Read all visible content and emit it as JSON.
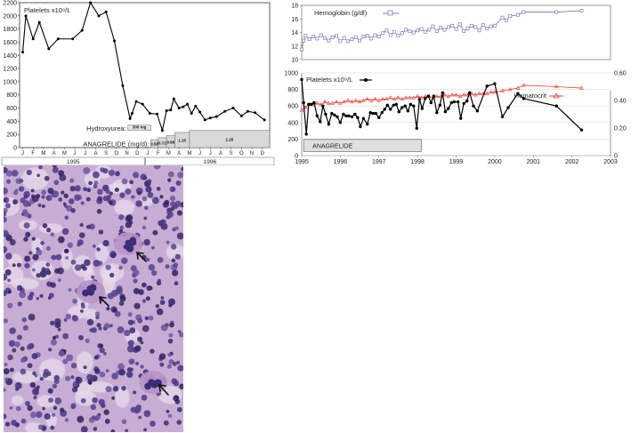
{
  "chart_data": [
    {
      "type": "line",
      "legend_label": "Platelets x10⁹/L",
      "ylim": [
        0,
        2200
      ],
      "yticks": [
        0,
        200,
        400,
        600,
        800,
        1000,
        1200,
        1400,
        1600,
        1800,
        2000,
        2200
      ],
      "month_labels": [
        "J",
        "F",
        "M",
        "A",
        "M",
        "J",
        "J",
        "A",
        "S",
        "O",
        "N",
        "D",
        "J",
        "F",
        "M",
        "A",
        "M",
        "J",
        "J",
        "A",
        "S",
        "O",
        "N",
        "D"
      ],
      "year_labels": [
        "1995",
        "1996"
      ],
      "series": [
        {
          "name": "Platelets x10⁹/L",
          "color": "#000000",
          "x": [
            0,
            0.3,
            1,
            1.6,
            2.5,
            3.4,
            4.8,
            5.7,
            6.5,
            7.3,
            8,
            8.8,
            9.6,
            10.3,
            10.5,
            10.9,
            11.5,
            12.2,
            12.9,
            13.4,
            13.8,
            14.2,
            14.5,
            15,
            15.4,
            15.8,
            16.2,
            16.6,
            17,
            17.5,
            18,
            18.6,
            19.4,
            20.2,
            21,
            21.6,
            22.3,
            23.2
          ],
          "values": [
            1450,
            2000,
            1650,
            1900,
            1500,
            1650,
            1650,
            1780,
            2200,
            2000,
            2060,
            1620,
            940,
            440,
            520,
            700,
            660,
            520,
            510,
            260,
            560,
            570,
            740,
            600,
            620,
            660,
            520,
            630,
            540,
            420,
            450,
            470,
            550,
            600,
            480,
            550,
            530,
            420
          ]
        }
      ],
      "treatments": [
        {
          "label": "Hydroxyurea:",
          "bars": [
            {
              "label": "300 mg",
              "start": 10.1,
              "end": 12.3
            }
          ]
        },
        {
          "label": "ANAGRELIDE (mg/d):",
          "bars": [
            {
              "label": "0.58",
              "start": 12.3,
              "end": 13.0
            },
            {
              "label": "0.71",
              "start": 13.0,
              "end": 13.8
            },
            {
              "label": "0.86",
              "start": 13.8,
              "end": 14.6
            },
            {
              "label": "1.15",
              "start": 14.6,
              "end": 16.0
            },
            {
              "label": "1.25",
              "start": 16.0,
              "end": 24.0
            }
          ]
        }
      ]
    },
    {
      "type": "line",
      "legend_label": "Hemoglobin (g/dl)",
      "ylim": [
        10,
        18
      ],
      "yticks": [
        10,
        12,
        14,
        16,
        18
      ],
      "xlim": [
        1995,
        2003
      ],
      "series": [
        {
          "name": "Hemoglobin (g/dl)",
          "color": "#7a7fb5",
          "x": [
            1995.0,
            1995.05,
            1995.1,
            1995.2,
            1995.3,
            1995.4,
            1995.5,
            1995.6,
            1995.7,
            1995.8,
            1995.9,
            1996.0,
            1996.1,
            1996.2,
            1996.3,
            1996.4,
            1996.5,
            1996.6,
            1996.7,
            1996.8,
            1996.9,
            1997.0,
            1997.1,
            1997.2,
            1997.3,
            1997.4,
            1997.5,
            1997.6,
            1997.7,
            1997.8,
            1997.9,
            1998.0,
            1998.1,
            1998.2,
            1998.3,
            1998.4,
            1998.5,
            1998.6,
            1998.7,
            1998.8,
            1998.9,
            1999.0,
            1999.1,
            1999.2,
            1999.3,
            1999.4,
            1999.5,
            1999.6,
            1999.7,
            1999.8,
            1999.9,
            2000.0,
            2000.2,
            2000.3,
            2000.4,
            2000.6,
            2000.75,
            2001.6,
            2002.25
          ],
          "values": [
            11.5,
            12.8,
            13.5,
            13.0,
            13.4,
            13.1,
            13.6,
            13.2,
            12.8,
            13.3,
            13.5,
            12.7,
            13.2,
            12.7,
            13.0,
            13.3,
            12.8,
            13.4,
            13.5,
            13.1,
            13.6,
            13.4,
            13.9,
            14.3,
            13.6,
            14.1,
            13.5,
            13.9,
            14.4,
            14.2,
            14.0,
            14.3,
            14.5,
            14.1,
            14.4,
            14.9,
            14.2,
            14.7,
            14.4,
            14.8,
            15.0,
            14.5,
            15.2,
            14.2,
            14.6,
            15.0,
            14.8,
            14.3,
            15.1,
            14.6,
            14.9,
            15.0,
            16.2,
            15.8,
            16.4,
            16.6,
            17.0,
            17.0,
            17.2
          ]
        }
      ]
    },
    {
      "type": "line",
      "ylim_left": [
        0,
        1000
      ],
      "yticks_left": [
        0,
        200,
        400,
        600,
        800,
        1000
      ],
      "ylim_right": [
        0,
        0.6
      ],
      "yticks_right": [
        "0",
        "0.20",
        "0.40",
        "0.60"
      ],
      "xlim": [
        1995,
        2003
      ],
      "xticks": [
        "1995",
        "1996",
        "1997",
        "1998",
        "1999",
        "2000",
        "2001",
        "2002",
        "2003"
      ],
      "legend": [
        "Platelets x10⁹/L",
        "Hematocrit"
      ],
      "series": [
        {
          "name": "Platelets x10⁹/L",
          "axis": "left",
          "color": "#000000",
          "x": [
            1995.0,
            1995.05,
            1995.12,
            1995.18,
            1995.25,
            1995.32,
            1995.4,
            1995.48,
            1995.55,
            1995.62,
            1995.7,
            1995.78,
            1995.85,
            1995.92,
            1996.0,
            1996.08,
            1996.15,
            1996.22,
            1996.3,
            1996.38,
            1996.45,
            1996.52,
            1996.6,
            1996.7,
            1996.78,
            1996.85,
            1996.92,
            1997.0,
            1997.08,
            1997.15,
            1997.22,
            1997.3,
            1997.38,
            1997.45,
            1997.52,
            1997.6,
            1997.68,
            1997.75,
            1997.82,
            1997.9,
            1997.98,
            1998.05,
            1998.12,
            1998.2,
            1998.28,
            1998.35,
            1998.42,
            1998.5,
            1998.58,
            1998.65,
            1998.72,
            1998.8,
            1998.88,
            1998.95,
            1999.05,
            1999.12,
            1999.2,
            1999.28,
            1999.35,
            1999.45,
            1999.55,
            1999.8,
            2000.0,
            2000.2,
            2000.35,
            2000.6,
            2000.75,
            2001.6,
            2002.25
          ],
          "values": [
            920,
            640,
            260,
            620,
            620,
            640,
            480,
            410,
            600,
            500,
            380,
            510,
            490,
            470,
            400,
            500,
            480,
            480,
            470,
            500,
            460,
            350,
            450,
            380,
            520,
            510,
            510,
            460,
            520,
            560,
            610,
            560,
            610,
            620,
            530,
            580,
            600,
            540,
            620,
            600,
            330,
            680,
            570,
            690,
            720,
            640,
            720,
            520,
            610,
            760,
            530,
            570,
            640,
            650,
            650,
            450,
            630,
            660,
            760,
            600,
            540,
            840,
            870,
            470,
            580,
            750,
            690,
            600,
            310
          ]
        },
        {
          "name": "Hematocrit",
          "axis": "right",
          "color": "#e0443a",
          "x": [
            1995.0,
            1995.1,
            1995.2,
            1995.3,
            1995.4,
            1995.5,
            1995.6,
            1995.7,
            1995.8,
            1995.9,
            1996.0,
            1996.1,
            1996.2,
            1996.3,
            1996.4,
            1996.5,
            1996.6,
            1996.7,
            1996.8,
            1996.9,
            1997.0,
            1997.1,
            1997.2,
            1997.3,
            1997.4,
            1997.5,
            1997.6,
            1997.7,
            1997.8,
            1997.9,
            1998.0,
            1998.1,
            1998.2,
            1998.3,
            1998.4,
            1998.5,
            1998.6,
            1998.7,
            1998.8,
            1998.9,
            1999.0,
            1999.1,
            1999.2,
            1999.3,
            1999.4,
            1999.5,
            1999.6,
            1999.7,
            1999.8,
            1999.9,
            2000.0,
            2000.2,
            2000.4,
            2000.6,
            2000.75,
            2001.6,
            2002.25
          ],
          "values": [
            0.33,
            0.35,
            0.37,
            0.37,
            0.38,
            0.37,
            0.39,
            0.38,
            0.38,
            0.39,
            0.38,
            0.39,
            0.4,
            0.39,
            0.4,
            0.39,
            0.4,
            0.41,
            0.4,
            0.41,
            0.4,
            0.41,
            0.41,
            0.42,
            0.41,
            0.42,
            0.41,
            0.42,
            0.42,
            0.42,
            0.43,
            0.42,
            0.43,
            0.43,
            0.42,
            0.43,
            0.43,
            0.44,
            0.43,
            0.44,
            0.44,
            0.43,
            0.44,
            0.44,
            0.45,
            0.44,
            0.45,
            0.45,
            0.45,
            0.46,
            0.46,
            0.47,
            0.48,
            0.49,
            0.51,
            0.5,
            0.49
          ]
        }
      ],
      "treatments": [
        {
          "label": "ANAGRELIDE",
          "start": 1995.05,
          "end": 1998.1
        }
      ]
    }
  ],
  "micrograph": {
    "background": "#c7add3",
    "arrows": 3
  }
}
